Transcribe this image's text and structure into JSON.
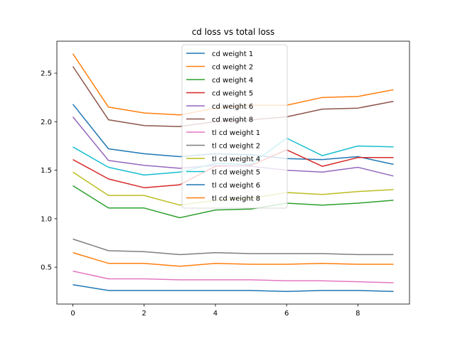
{
  "chart_data": {
    "type": "line",
    "title": "cd loss vs total loss",
    "xlabel": "",
    "ylabel": "",
    "x": [
      0,
      1,
      2,
      3,
      4,
      5,
      6,
      7,
      8,
      9
    ],
    "xlim": [
      -0.45,
      9.45
    ],
    "ylim": [
      0.12,
      2.83
    ],
    "xticks": [
      0,
      2,
      4,
      6,
      8
    ],
    "yticks": [
      0.5,
      1.0,
      1.5,
      2.0,
      2.5
    ],
    "ytick_labels": [
      "0.5",
      "1.0",
      "1.5",
      "2.0",
      "2.5"
    ],
    "grid": false,
    "legend_position": "top-center",
    "series": [
      {
        "name": "cd weight 1",
        "color": "#1f77b4",
        "values": [
          2.18,
          1.72,
          1.67,
          1.64,
          1.67,
          1.66,
          1.62,
          1.61,
          1.64,
          1.56
        ]
      },
      {
        "name": "cd weight 2",
        "color": "#ff7f0e",
        "values": [
          2.7,
          2.15,
          2.09,
          2.07,
          2.14,
          2.17,
          2.17,
          2.25,
          2.26,
          2.33
        ]
      },
      {
        "name": "cd weight 4",
        "color": "#2ca02c",
        "values": [
          1.34,
          1.11,
          1.11,
          1.01,
          1.09,
          1.1,
          1.16,
          1.14,
          1.16,
          1.19
        ]
      },
      {
        "name": "cd weight 5",
        "color": "#d62728",
        "values": [
          1.61,
          1.41,
          1.32,
          1.35,
          1.54,
          1.55,
          1.71,
          1.54,
          1.63,
          1.63
        ]
      },
      {
        "name": "cd weight 6",
        "color": "#9467bd",
        "values": [
          2.05,
          1.6,
          1.55,
          1.52,
          1.55,
          1.54,
          1.5,
          1.48,
          1.53,
          1.44
        ]
      },
      {
        "name": "cd weight 8",
        "color": "#8c564b",
        "values": [
          2.57,
          2.02,
          1.96,
          1.95,
          2.0,
          2.02,
          2.05,
          2.13,
          2.14,
          2.21
        ]
      },
      {
        "name": "tl cd weight 1",
        "color": "#e377c2",
        "values": [
          0.46,
          0.38,
          0.38,
          0.37,
          0.37,
          0.37,
          0.36,
          0.36,
          0.35,
          0.34
        ]
      },
      {
        "name": "tl cd weight 2",
        "color": "#7f7f7f",
        "values": [
          0.79,
          0.67,
          0.66,
          0.63,
          0.65,
          0.64,
          0.64,
          0.64,
          0.63,
          0.63
        ]
      },
      {
        "name": "tl cd weight 4",
        "color": "#bcbd22",
        "values": [
          1.48,
          1.24,
          1.24,
          1.14,
          1.19,
          1.21,
          1.27,
          1.25,
          1.28,
          1.3
        ]
      },
      {
        "name": "tl cd weight 5",
        "color": "#17becf",
        "values": [
          1.74,
          1.53,
          1.45,
          1.48,
          1.57,
          1.56,
          1.83,
          1.65,
          1.75,
          1.74
        ]
      },
      {
        "name": "tl cd weight 6",
        "color": "#1f77b4",
        "values": [
          0.32,
          0.26,
          0.26,
          0.26,
          0.26,
          0.26,
          0.25,
          0.26,
          0.26,
          0.25
        ]
      },
      {
        "name": "tl cd weight 8",
        "color": "#ff7f0e",
        "values": [
          0.65,
          0.54,
          0.54,
          0.51,
          0.54,
          0.53,
          0.53,
          0.54,
          0.53,
          0.53
        ]
      }
    ]
  }
}
